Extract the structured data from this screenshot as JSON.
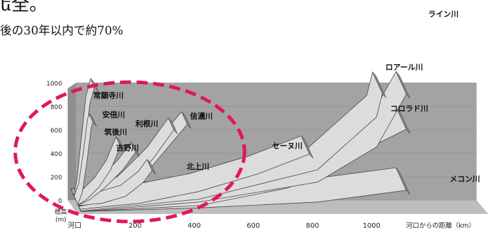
{
  "page": {
    "title_fragment": "ե全。",
    "subtitle_fragment": "後の30年以内で約70%"
  },
  "colors": {
    "ribbon_fill": "#dcdcdc",
    "ribbon_side": "#8c8c8c",
    "wall": "#a3a3a3",
    "floor": "#bdbdbd",
    "highlight_ellipse": "#e0185b"
  },
  "chart_data": {
    "type": "line",
    "style": "3d-ribbon",
    "title": "",
    "xlabel": "河口からの距離（km）",
    "ylabel": "標高\n(m)",
    "xlim": [
      0,
      1100
    ],
    "ylim": [
      0,
      1000
    ],
    "x_tick_labels": [
      "河口",
      "200",
      "400",
      "600",
      "800",
      "1000"
    ],
    "y_tick_labels": [
      "0",
      "200",
      "400",
      "600",
      "800",
      "1000"
    ],
    "grid": true,
    "highlight": "dashed ellipse around Japanese rivers",
    "series": [
      {
        "name": "常願寺川",
        "x": [
          0,
          10,
          25,
          40,
          56
        ],
        "y": [
          0,
          150,
          500,
          850,
          1000
        ]
      },
      {
        "name": "安倍川",
        "x": [
          0,
          15,
          30,
          45,
          51
        ],
        "y": [
          0,
          100,
          350,
          650,
          700
        ]
      },
      {
        "name": "筑後川",
        "x": [
          0,
          30,
          70,
          110,
          143
        ],
        "y": [
          0,
          50,
          150,
          300,
          500
        ]
      },
      {
        "name": "吉野川",
        "x": [
          0,
          40,
          90,
          150,
          194
        ],
        "y": [
          0,
          50,
          150,
          300,
          450
        ]
      },
      {
        "name": "利根川",
        "x": [
          0,
          60,
          150,
          250,
          322
        ],
        "y": [
          0,
          30,
          150,
          400,
          650
        ]
      },
      {
        "name": "北上川",
        "x": [
          0,
          80,
          160,
          220,
          249
        ],
        "y": [
          0,
          20,
          80,
          200,
          300
        ]
      },
      {
        "name": "信濃川",
        "x": [
          0,
          100,
          200,
          300,
          367
        ],
        "y": [
          0,
          50,
          200,
          500,
          700
        ]
      },
      {
        "name": "セーヌ川",
        "x": [
          0,
          200,
          400,
          600,
          776
        ],
        "y": [
          0,
          50,
          150,
          300,
          470
        ]
      },
      {
        "name": "メコン川",
        "x": [
          0,
          400,
          800,
          1100
        ],
        "y": [
          0,
          30,
          80,
          180
        ]
      },
      {
        "name": "コロラド川",
        "x": [
          0,
          400,
          700,
          900,
          1100
        ],
        "y": [
          0,
          50,
          200,
          450,
          700
        ]
      },
      {
        "name": "ロアール川",
        "x": [
          0,
          400,
          800,
          1000,
          1020
        ],
        "y": [
          0,
          100,
          350,
          800,
          1000
        ]
      },
      {
        "name": "ライン川",
        "x": [
          0,
          400,
          800,
          1000,
          1100
        ],
        "y": [
          0,
          80,
          250,
          550,
          1000
        ]
      }
    ]
  }
}
